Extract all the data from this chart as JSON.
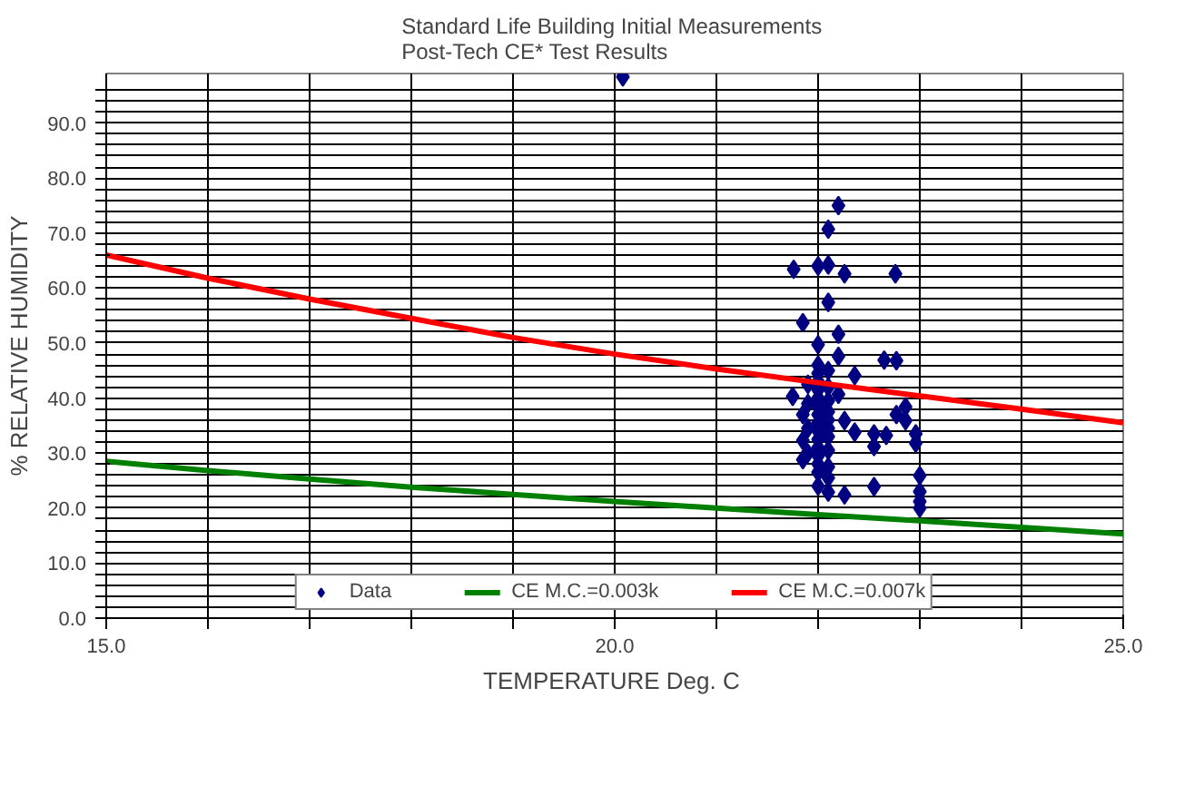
{
  "chart_data": {
    "type": "scatter",
    "title": "Standard Life Building  Initial Measurements",
    "subtitle": "Post-Tech CE* Test Results",
    "xlabel": "TEMPERATURE  Deg. C",
    "ylabel": "% RELATIVE HUMIDITY",
    "xlim": [
      15,
      25
    ],
    "ylim": [
      0,
      99
    ],
    "xticks": [
      {
        "value": 15,
        "label": "15.0"
      },
      {
        "value": 16,
        "label": null
      },
      {
        "value": 17,
        "label": null
      },
      {
        "value": 18,
        "label": null
      },
      {
        "value": 19,
        "label": null
      },
      {
        "value": 20,
        "label": "20.0"
      },
      {
        "value": 21,
        "label": null
      },
      {
        "value": 22,
        "label": null
      },
      {
        "value": 23,
        "label": null
      },
      {
        "value": 24,
        "label": null
      },
      {
        "value": 25,
        "label": "25.0"
      }
    ],
    "yticks": [
      {
        "value": 0,
        "label": "0.0"
      },
      {
        "value": 2,
        "label": null
      },
      {
        "value": 4,
        "label": null
      },
      {
        "value": 6,
        "label": null
      },
      {
        "value": 8,
        "label": null
      },
      {
        "value": 10,
        "label": "10.0"
      },
      {
        "value": 12,
        "label": null
      },
      {
        "value": 14,
        "label": null
      },
      {
        "value": 16,
        "label": null
      },
      {
        "value": 18,
        "label": null
      },
      {
        "value": 20,
        "label": "20.0"
      },
      {
        "value": 22,
        "label": null
      },
      {
        "value": 24,
        "label": null
      },
      {
        "value": 26,
        "label": null
      },
      {
        "value": 28,
        "label": null
      },
      {
        "value": 30,
        "label": "30.0"
      },
      {
        "value": 32,
        "label": null
      },
      {
        "value": 34,
        "label": null
      },
      {
        "value": 36,
        "label": null
      },
      {
        "value": 38,
        "label": null
      },
      {
        "value": 40,
        "label": "40.0"
      },
      {
        "value": 42,
        "label": null
      },
      {
        "value": 44,
        "label": null
      },
      {
        "value": 46,
        "label": null
      },
      {
        "value": 48,
        "label": null
      },
      {
        "value": 50,
        "label": "50.0"
      },
      {
        "value": 52,
        "label": null
      },
      {
        "value": 54,
        "label": null
      },
      {
        "value": 56,
        "label": null
      },
      {
        "value": 58,
        "label": null
      },
      {
        "value": 60,
        "label": "60.0"
      },
      {
        "value": 62,
        "label": null
      },
      {
        "value": 64,
        "label": null
      },
      {
        "value": 66,
        "label": null
      },
      {
        "value": 68,
        "label": null
      },
      {
        "value": 70,
        "label": "70.0"
      },
      {
        "value": 72,
        "label": null
      },
      {
        "value": 74,
        "label": null
      },
      {
        "value": 76,
        "label": null
      },
      {
        "value": 78,
        "label": null
      },
      {
        "value": 80,
        "label": "80.0"
      },
      {
        "value": 82,
        "label": null
      },
      {
        "value": 84,
        "label": null
      },
      {
        "value": 86,
        "label": null
      },
      {
        "value": 88,
        "label": null
      },
      {
        "value": 90,
        "label": "90.0"
      },
      {
        "value": 92,
        "label": null
      },
      {
        "value": 94,
        "label": null
      },
      {
        "value": 96,
        "label": null
      }
    ],
    "grid": true,
    "legend": "bottom",
    "series": [
      {
        "name": "Data",
        "marker": "diamond",
        "color": "#000080",
        "x": [
          20.08,
          22.2,
          22.1,
          21.76,
          22.0,
          22.1,
          22.26,
          22.76,
          22.1,
          21.85,
          22.0,
          22.2,
          22.2,
          22.65,
          22.77,
          22.36,
          21.75,
          22.2,
          22.26,
          22.36,
          22.55,
          22.55,
          22.67,
          22.77,
          22.86,
          22.86,
          22.96,
          22.96,
          23.0,
          23.0,
          23.0,
          23.0,
          22.26,
          22.55,
          22.1,
          22.0,
          21.85,
          21.85,
          21.85,
          22.0,
          22.0,
          22.0,
          22.0,
          22.0,
          22.0,
          22.0,
          22.0,
          22.0,
          22.0,
          22.0,
          22.0,
          22.0,
          22.0,
          22.1,
          22.1,
          22.1,
          22.1,
          22.1,
          22.1,
          22.1,
          22.1,
          22.1,
          22.1,
          21.9,
          21.9,
          21.9,
          21.9
        ],
        "values": [
          98.4,
          75.0,
          70.7,
          63.4,
          64.0,
          64.2,
          62.6,
          62.6,
          57.4,
          53.7,
          49.7,
          51.6,
          47.6,
          46.9,
          46.8,
          44.1,
          40.3,
          40.7,
          35.9,
          33.8,
          33.5,
          31.2,
          33.2,
          37.0,
          38.4,
          35.9,
          33.5,
          31.8,
          25.9,
          23.0,
          21.2,
          20.0,
          22.4,
          23.9,
          22.9,
          24.0,
          28.8,
          32.3,
          37.0,
          46.0,
          44.5,
          43.0,
          41.5,
          40.0,
          38.5,
          37.0,
          35.5,
          34.0,
          32.5,
          31.0,
          29.5,
          28.0,
          26.5,
          45.0,
          42.0,
          39.5,
          37.5,
          36.0,
          34.5,
          33.0,
          30.5,
          27.5,
          25.5,
          42.5,
          39.0,
          34.5,
          30.0
        ]
      },
      {
        "name": "CE M.C.=0.003k",
        "type": "line",
        "marker": "none",
        "color": "#008000",
        "x": [
          15,
          16,
          17,
          18,
          19,
          20,
          21,
          22,
          23,
          24,
          25
        ],
        "values": [
          28.5,
          26.8,
          25.3,
          23.8,
          22.5,
          21.2,
          20.0,
          18.8,
          17.7,
          16.5,
          15.3
        ]
      },
      {
        "name": "CE M.C.=0.007k",
        "type": "line",
        "marker": "none",
        "color": "#ff0000",
        "x": [
          15,
          16,
          17,
          18,
          19,
          20,
          21,
          22,
          23,
          24,
          25
        ],
        "values": [
          66.0,
          61.8,
          58.0,
          54.5,
          51.0,
          48.0,
          45.3,
          42.8,
          40.4,
          38.0,
          35.5
        ]
      }
    ]
  }
}
